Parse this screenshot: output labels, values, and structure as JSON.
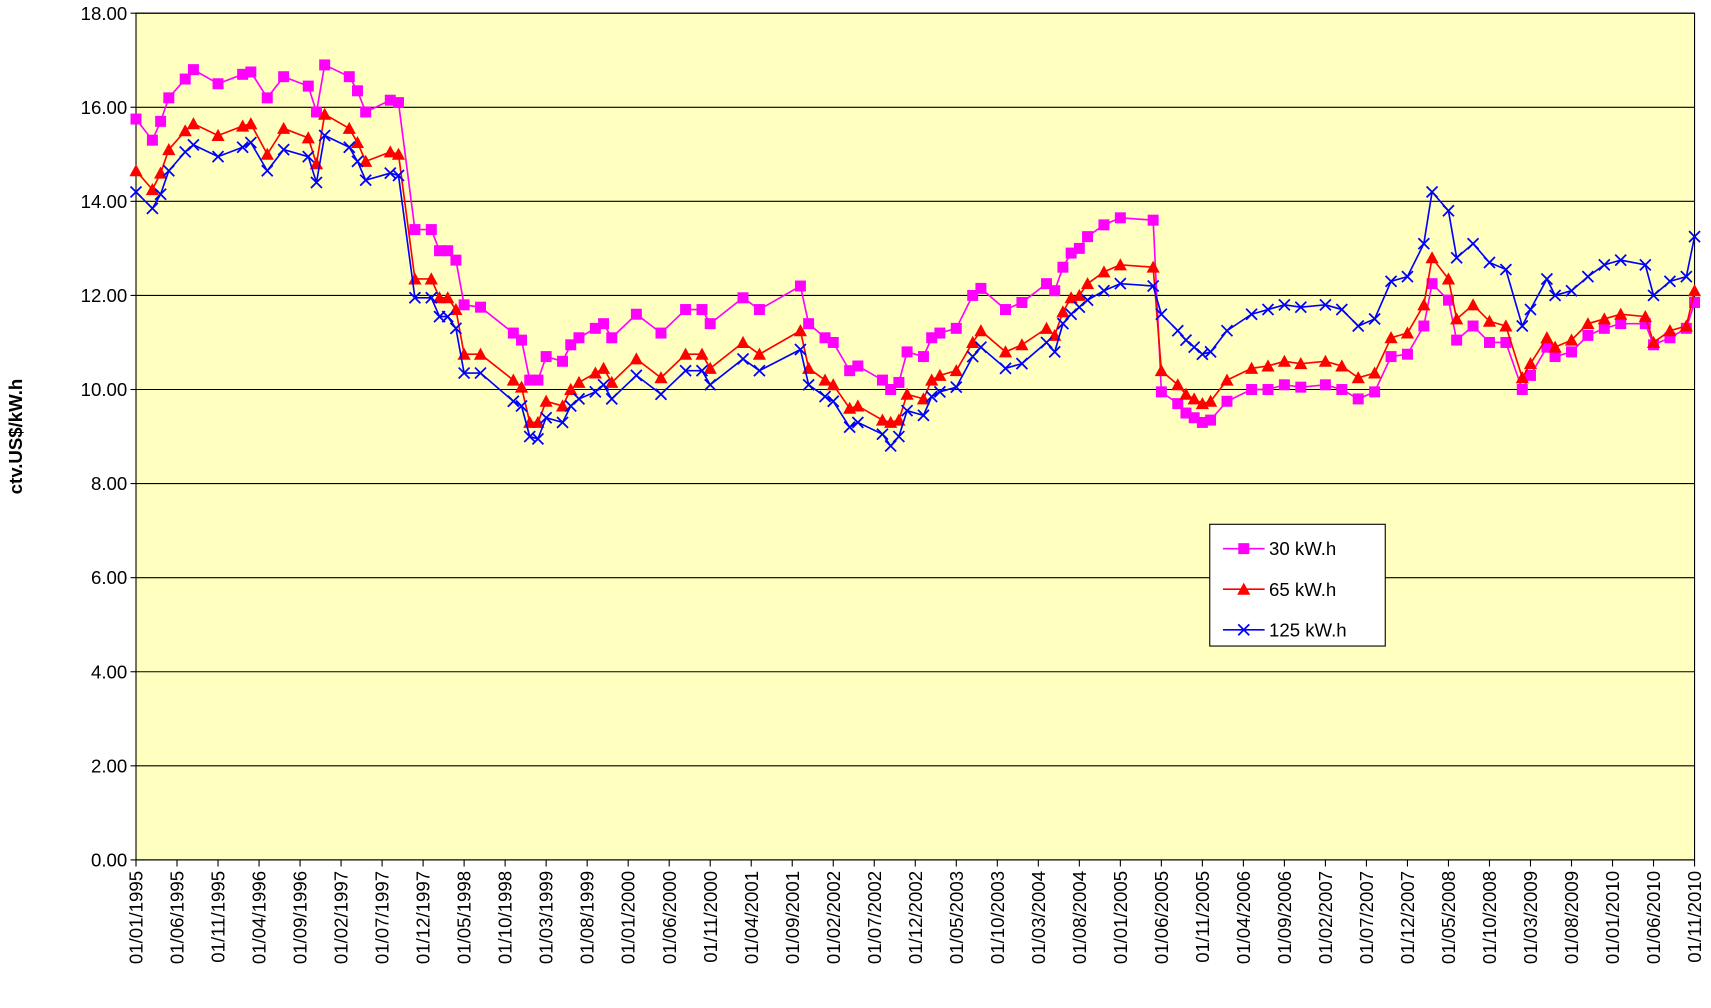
{
  "chart_data": {
    "type": "line",
    "y_label": "ctv.US$/kW.h",
    "x": [
      "01/01/1995",
      "01/03/1995",
      "01/04/1995",
      "01/05/1995",
      "01/07/1995",
      "01/08/1995",
      "01/11/1995",
      "01/02/1996",
      "01/03/1996",
      "01/05/1996",
      "01/07/1996",
      "01/10/1996",
      "01/11/1996",
      "01/12/1996",
      "01/03/1997",
      "01/04/1997",
      "01/05/1997",
      "01/08/1997",
      "01/09/1997",
      "01/11/1997",
      "01/01/1998",
      "01/02/1998",
      "01/03/1998",
      "01/04/1998",
      "01/05/1998",
      "01/07/1998",
      "01/11/1998",
      "01/12/1998",
      "01/01/1999",
      "01/02/1999",
      "01/03/1999",
      "01/05/1999",
      "01/06/1999",
      "01/07/1999",
      "01/09/1999",
      "01/10/1999",
      "01/11/1999",
      "01/02/2000",
      "01/05/2000",
      "01/08/2000",
      "01/10/2000",
      "01/11/2000",
      "01/03/2001",
      "01/05/2001",
      "01/10/2001",
      "01/11/2001",
      "01/01/2002",
      "01/02/2002",
      "01/04/2002",
      "01/05/2002",
      "01/08/2002",
      "01/09/2002",
      "01/10/2002",
      "01/11/2002",
      "01/01/2003",
      "01/02/2003",
      "01/03/2003",
      "01/05/2003",
      "01/07/2003",
      "01/08/2003",
      "01/11/2003",
      "01/01/2004",
      "01/04/2004",
      "01/05/2004",
      "01/06/2004",
      "01/07/2004",
      "01/08/2004",
      "01/09/2004",
      "01/11/2004",
      "01/01/2005",
      "01/05/2005",
      "01/06/2005",
      "01/08/2005",
      "01/09/2005",
      "01/10/2005",
      "01/11/2005",
      "01/12/2005",
      "01/02/2006",
      "01/05/2006",
      "01/07/2006",
      "01/09/2006",
      "01/11/2006",
      "01/02/2007",
      "01/04/2007",
      "01/06/2007",
      "01/08/2007",
      "01/10/2007",
      "01/12/2007",
      "01/02/2008",
      "01/03/2008",
      "01/05/2008",
      "01/06/2008",
      "01/08/2008",
      "01/10/2008",
      "01/12/2008",
      "01/02/2009",
      "01/03/2009",
      "01/05/2009",
      "01/06/2009",
      "01/08/2009",
      "01/10/2009",
      "01/12/2009",
      "01/02/2010",
      "01/05/2010",
      "01/06/2010",
      "01/08/2010",
      "01/10/2010",
      "01/11/2010"
    ],
    "series": [
      {
        "name": "30 kW.h",
        "color": "#ff00ff",
        "marker": "square",
        "values": [
          15.75,
          15.3,
          15.7,
          16.2,
          16.6,
          16.8,
          16.5,
          16.7,
          16.75,
          16.2,
          16.65,
          16.45,
          15.9,
          16.9,
          16.65,
          16.35,
          15.9,
          16.15,
          16.1,
          13.4,
          13.4,
          12.95,
          12.95,
          12.75,
          11.8,
          11.75,
          11.2,
          11.05,
          10.2,
          10.2,
          10.7,
          10.6,
          10.95,
          11.1,
          11.3,
          11.4,
          11.1,
          11.6,
          11.2,
          11.7,
          11.7,
          11.4,
          11.95,
          11.7,
          12.2,
          11.4,
          11.1,
          11.0,
          10.4,
          10.5,
          10.2,
          10.0,
          10.15,
          10.8,
          10.7,
          11.1,
          11.2,
          11.3,
          12.0,
          12.15,
          11.7,
          11.85,
          12.25,
          12.1,
          12.6,
          12.9,
          13.0,
          13.25,
          13.5,
          13.65,
          13.6,
          9.95,
          9.7,
          9.5,
          9.4,
          9.3,
          9.35,
          9.75,
          10.0,
          10.0,
          10.1,
          10.05,
          10.1,
          10.0,
          9.8,
          9.95,
          10.7,
          10.75,
          11.35,
          12.25,
          11.9,
          11.05,
          11.35,
          11.0,
          11.0,
          10.0,
          10.3,
          10.9,
          10.7,
          10.8,
          11.15,
          11.3,
          11.4,
          11.4,
          10.95,
          11.1,
          11.3,
          11.85
        ]
      },
      {
        "name": "65 kW.h",
        "color": "#ff0000",
        "marker": "triangle",
        "values": [
          14.65,
          14.25,
          14.6,
          15.1,
          15.5,
          15.65,
          15.4,
          15.6,
          15.65,
          15.0,
          15.55,
          15.35,
          14.8,
          15.85,
          15.55,
          15.25,
          14.85,
          15.05,
          15.0,
          12.35,
          12.35,
          11.95,
          11.95,
          11.7,
          10.75,
          10.75,
          10.2,
          10.05,
          9.3,
          9.3,
          9.75,
          9.65,
          10.0,
          10.15,
          10.35,
          10.45,
          10.15,
          10.65,
          10.25,
          10.75,
          10.75,
          10.45,
          11.0,
          10.75,
          11.25,
          10.45,
          10.2,
          10.1,
          9.6,
          9.65,
          9.35,
          9.3,
          9.35,
          9.9,
          9.8,
          10.2,
          10.3,
          10.4,
          11.0,
          11.25,
          10.8,
          10.95,
          11.3,
          11.15,
          11.65,
          11.95,
          12.0,
          12.25,
          12.5,
          12.65,
          12.6,
          10.4,
          10.1,
          9.9,
          9.8,
          9.7,
          9.75,
          10.2,
          10.45,
          10.5,
          10.6,
          10.55,
          10.6,
          10.5,
          10.25,
          10.35,
          11.1,
          11.2,
          11.8,
          12.8,
          12.35,
          11.5,
          11.8,
          11.45,
          11.35,
          10.25,
          10.55,
          11.1,
          10.9,
          11.05,
          11.4,
          11.5,
          11.6,
          11.55,
          11.0,
          11.25,
          11.35,
          12.1
        ]
      },
      {
        "name": "125 kW.h",
        "color": "#0000ff",
        "marker": "cross",
        "values": [
          14.2,
          13.85,
          14.15,
          14.65,
          15.05,
          15.2,
          14.95,
          15.15,
          15.25,
          14.65,
          15.1,
          14.95,
          14.4,
          15.4,
          15.15,
          14.85,
          14.45,
          14.6,
          14.55,
          11.95,
          11.95,
          11.55,
          11.55,
          11.3,
          10.35,
          10.35,
          9.75,
          9.65,
          9.0,
          8.95,
          9.4,
          9.3,
          9.65,
          9.8,
          9.95,
          10.1,
          9.8,
          10.3,
          9.9,
          10.4,
          10.4,
          10.1,
          10.65,
          10.4,
          10.85,
          10.1,
          9.85,
          9.75,
          9.2,
          9.3,
          9.05,
          8.8,
          9.0,
          9.55,
          9.45,
          9.85,
          9.95,
          10.05,
          10.7,
          10.9,
          10.45,
          10.55,
          11.0,
          10.8,
          11.4,
          11.6,
          11.75,
          11.9,
          12.1,
          12.25,
          12.2,
          11.6,
          11.25,
          11.05,
          10.9,
          10.75,
          10.8,
          11.25,
          11.6,
          11.7,
          11.8,
          11.75,
          11.8,
          11.7,
          11.35,
          11.5,
          12.3,
          12.4,
          13.1,
          14.2,
          13.8,
          12.8,
          13.1,
          12.7,
          12.55,
          11.35,
          11.7,
          12.35,
          12.0,
          12.1,
          12.4,
          12.65,
          12.75,
          12.65,
          12.0,
          12.3,
          12.4,
          13.25
        ]
      }
    ],
    "xlim": [
      "01/01/1995",
      "01/11/2010"
    ],
    "xticks": [
      "01/01/1995",
      "01/06/1995",
      "01/11/1995",
      "01/04/1996",
      "01/09/1996",
      "01/02/1997",
      "01/07/1997",
      "01/12/1997",
      "01/05/1998",
      "01/10/1998",
      "01/03/1999",
      "01/08/1999",
      "01/01/2000",
      "01/06/2000",
      "01/11/2000",
      "01/04/2001",
      "01/09/2001",
      "01/02/2002",
      "01/07/2002",
      "01/12/2002",
      "01/05/2003",
      "01/10/2003",
      "01/03/2004",
      "01/08/2004",
      "01/01/2005",
      "01/06/2005",
      "01/11/2005",
      "01/04/2006",
      "01/09/2006",
      "01/02/2007",
      "01/07/2007",
      "01/12/2007",
      "01/05/2008",
      "01/10/2008",
      "01/03/2009",
      "01/08/2009",
      "01/01/2010",
      "01/06/2010",
      "01/11/2010"
    ],
    "ylim": [
      0,
      18
    ],
    "yticks": [
      {
        "value": 0,
        "label": "0.00"
      },
      {
        "value": 2,
        "label": "2.00"
      },
      {
        "value": 4,
        "label": "4.00"
      },
      {
        "value": 6,
        "label": "6.00"
      },
      {
        "value": 8,
        "label": "8.00"
      },
      {
        "value": 10,
        "label": "10.00"
      },
      {
        "value": 12,
        "label": "12.00"
      },
      {
        "value": 14,
        "label": "14.00"
      },
      {
        "value": 16,
        "label": "16.00"
      },
      {
        "value": 18,
        "label": "18.00"
      }
    ],
    "grid": true,
    "plot_background": "#ffffc0",
    "legend_position": "center-right"
  }
}
